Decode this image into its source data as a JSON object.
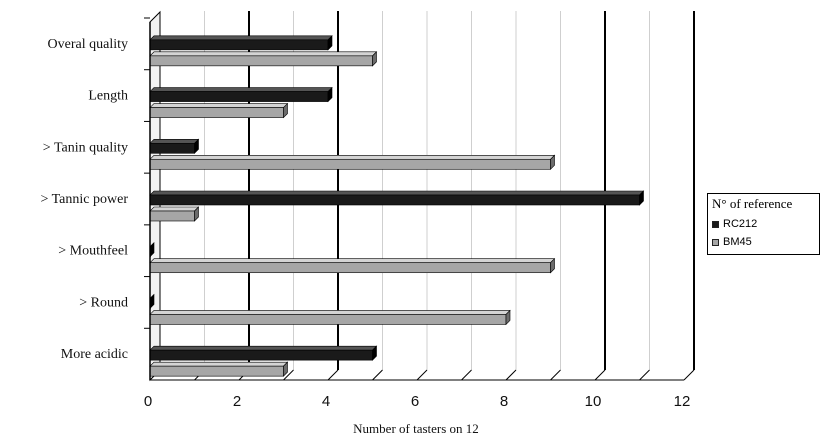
{
  "chart_data": {
    "type": "bar",
    "orientation": "horizontal",
    "categories": [
      "Overal quality",
      "Length",
      "> Tanin quality",
      "> Tannic power",
      "> Mouthfeel",
      "> Round",
      "More acidic"
    ],
    "series": [
      {
        "name": "RC212",
        "color": "#1a1a1a",
        "values": [
          4,
          4,
          1,
          11,
          0,
          0,
          5
        ]
      },
      {
        "name": "BM45",
        "color": "#a6a6a6",
        "values": [
          5,
          3,
          9,
          1,
          9,
          8,
          3
        ]
      }
    ],
    "xlabel": "Number of tasters on 12",
    "xlim": [
      0,
      12
    ],
    "xticks": [
      0,
      2,
      4,
      6,
      8,
      10,
      12
    ],
    "legend_title": "N° of reference",
    "legend_position": "right",
    "style": "3d"
  }
}
